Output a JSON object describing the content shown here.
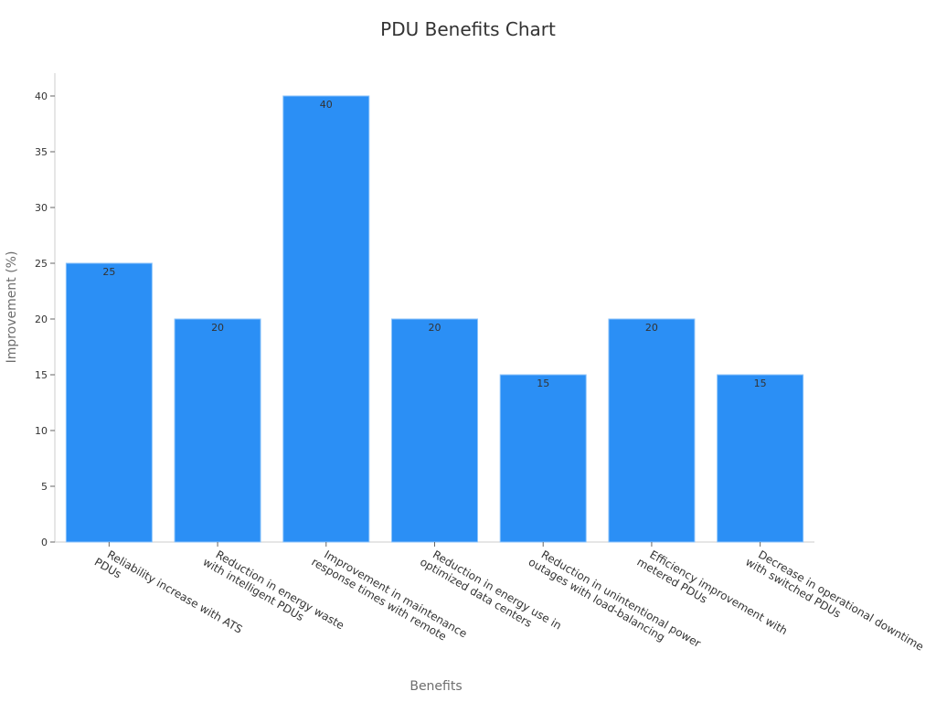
{
  "chart_data": {
    "type": "bar",
    "title": "PDU Benefits Chart",
    "xlabel": "Benefits",
    "ylabel": "Improvement (%)",
    "ylim": [
      0,
      42
    ],
    "yticks": [
      0,
      5,
      10,
      15,
      20,
      25,
      30,
      35,
      40
    ],
    "grid": false,
    "legend": null,
    "bar_color": "#2b8ff5",
    "categories": [
      [
        "Reliability increase with ATS",
        "PDUs"
      ],
      [
        "Reduction in energy waste",
        "with intelligent PDUs"
      ],
      [
        "Improvement in maintenance",
        "response times with remote"
      ],
      [
        "Reduction in energy use in",
        "optimized data centers"
      ],
      [
        "Reduction in unintentional power",
        "outages with load-balancing"
      ],
      [
        "Efficiency improvement with",
        "metered PDUs"
      ],
      [
        "Decrease in operational downtime",
        "with switched PDUs"
      ]
    ],
    "values": [
      25,
      20,
      40,
      20,
      15,
      20,
      15
    ]
  }
}
